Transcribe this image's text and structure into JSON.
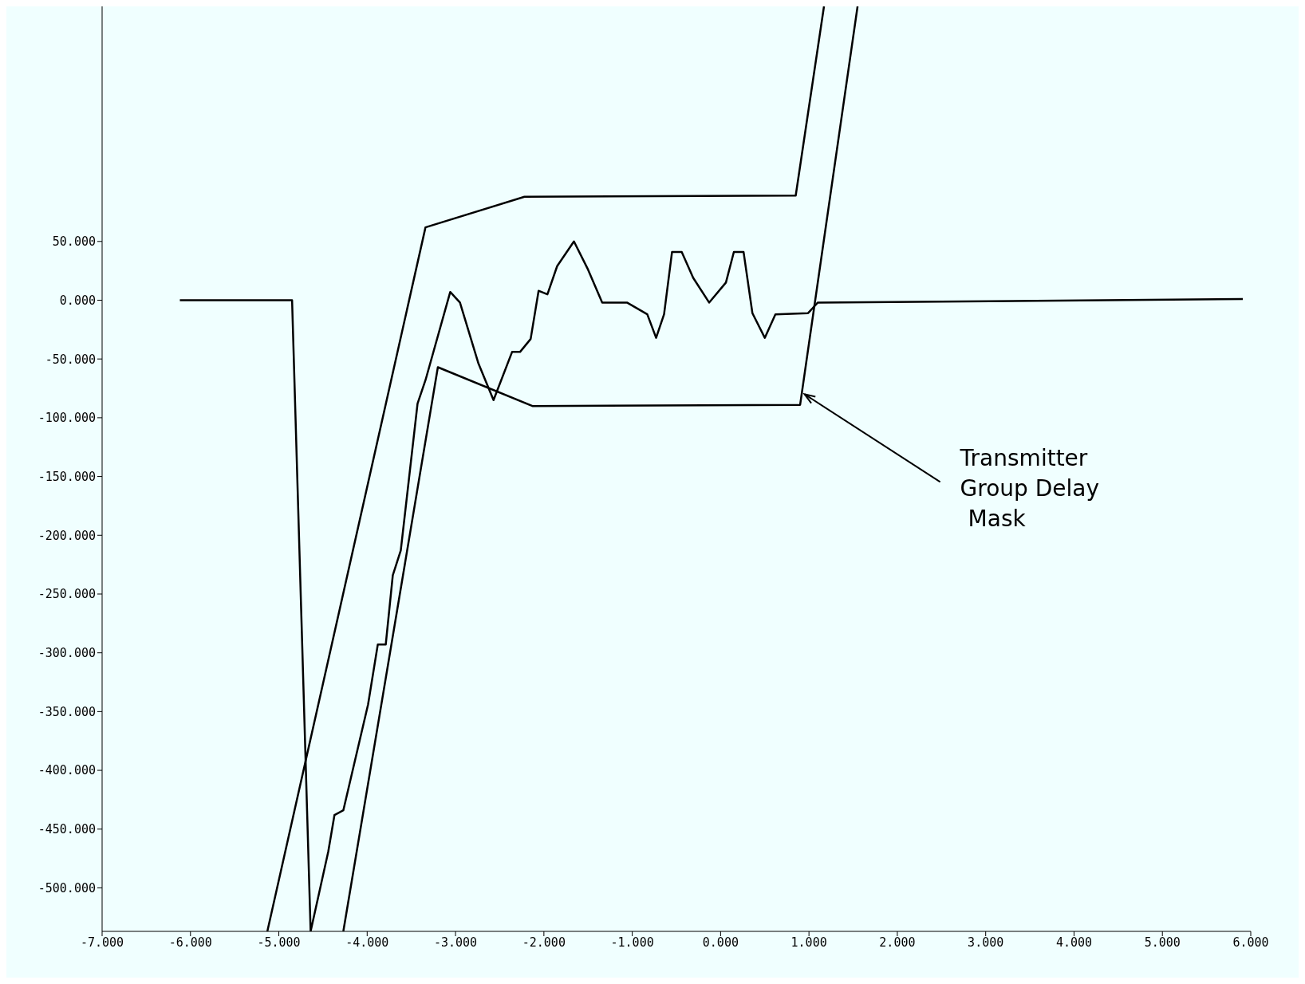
{
  "chart_data": {
    "type": "line",
    "xlim": [
      -7,
      6
    ],
    "ylim": [
      -537,
      250
    ],
    "xticks": [
      {
        "value": -7,
        "label": "-7.000"
      },
      {
        "value": -6,
        "label": "-6.000"
      },
      {
        "value": -5,
        "label": "-5.000"
      },
      {
        "value": -4,
        "label": "-4.000"
      },
      {
        "value": -3,
        "label": "-3.000"
      },
      {
        "value": -2,
        "label": "-2.000"
      },
      {
        "value": -1,
        "label": "-1.000"
      },
      {
        "value": 0,
        "label": "0.000"
      },
      {
        "value": 1,
        "label": "1.000"
      },
      {
        "value": 2,
        "label": "2.000"
      },
      {
        "value": 3,
        "label": "3.000"
      },
      {
        "value": 4,
        "label": "4.000"
      },
      {
        "value": 5,
        "label": "5.000"
      },
      {
        "value": 6,
        "label": "6.000"
      }
    ],
    "yticks": [
      {
        "value": 50,
        "label": "50.000"
      },
      {
        "value": 0,
        "label": "0.000"
      },
      {
        "value": -50,
        "label": "-50.000"
      },
      {
        "value": -100,
        "label": "-100.000"
      },
      {
        "value": -150,
        "label": "-150.000"
      },
      {
        "value": -200,
        "label": "-200.000"
      },
      {
        "value": -250,
        "label": "-250.000"
      },
      {
        "value": -300,
        "label": "-300.000"
      },
      {
        "value": -350,
        "label": "-350.000"
      },
      {
        "value": -400,
        "label": "-400.000"
      },
      {
        "value": -450,
        "label": "-450.000"
      },
      {
        "value": -500,
        "label": "-500.000"
      }
    ],
    "marker": "none",
    "series": [
      {
        "color": "#000000",
        "x": [
          -6.12,
          -4.85,
          -4.64,
          -4.44,
          -4.37,
          -4.27,
          -3.99,
          -3.88,
          -3.79,
          -3.71,
          -3.62,
          -3.43,
          -3.34,
          -3.06,
          -2.95,
          -2.74,
          -2.57,
          -2.36,
          -2.27,
          -2.15,
          -2.06,
          -1.96,
          -1.85,
          -1.66,
          -1.5,
          -1.34,
          -1.06,
          -0.83,
          -0.73,
          -0.64,
          -0.55,
          -0.44,
          -0.31,
          -0.13,
          0.06,
          0.15,
          0.26,
          0.36,
          0.5,
          0.62,
          0.99,
          1.1,
          5.91
        ],
        "values": [
          0,
          0,
          -537,
          -469,
          -438,
          -434,
          -344,
          -293,
          -293,
          -234,
          -213,
          -88,
          -68,
          7,
          -2,
          -54,
          -85,
          -44,
          -44,
          -33,
          8,
          5,
          29,
          50,
          26,
          -2,
          -2,
          -12,
          -32,
          -12,
          41,
          41,
          19,
          -2,
          15,
          41,
          41,
          -11,
          -32,
          -12,
          -11,
          -2,
          1
        ]
      },
      {
        "color": "#000000",
        "x": [
          -5.13,
          -3.34,
          -2.22,
          0.85,
          1.17
        ],
        "values": [
          -537,
          62,
          88,
          89,
          250
        ]
      },
      {
        "color": "#000000",
        "x": [
          -4.27,
          -3.2,
          -2.13,
          0.9,
          1.55
        ],
        "values": [
          -537,
          -57,
          -90,
          -89,
          250
        ]
      }
    ],
    "annotations": [
      {
        "text": "Transmitter Group Delay Mask",
        "x": 0.95,
        "y": -80
      }
    ]
  }
}
